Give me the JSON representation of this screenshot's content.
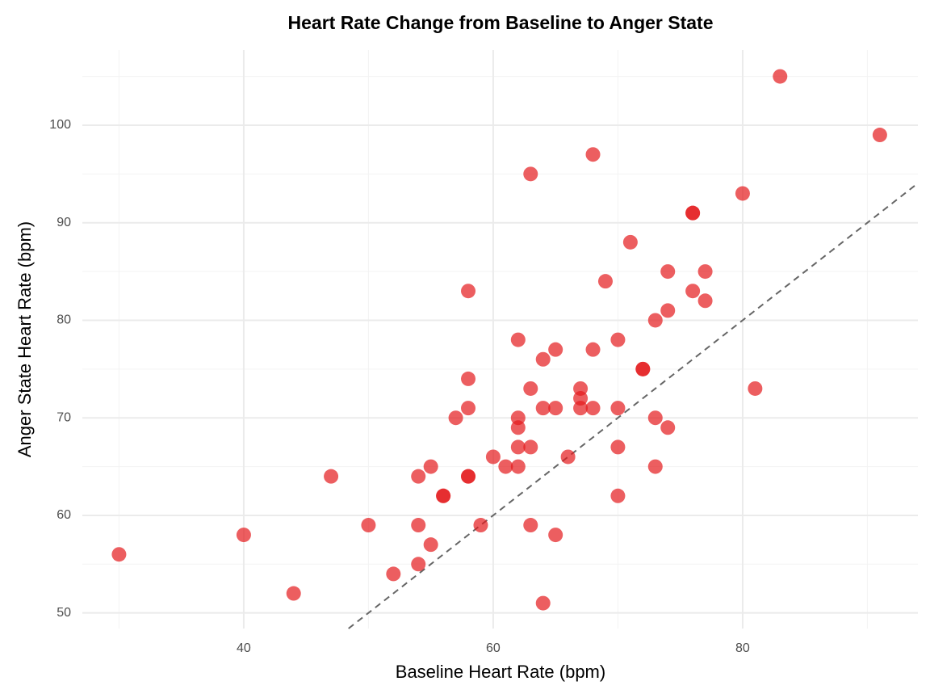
{
  "chart_data": {
    "type": "scatter",
    "title": "Heart Rate Change from Baseline to Anger State",
    "xlabel": "Baseline Heart Rate (bpm)",
    "ylabel": "Anger State Heart Rate (bpm)",
    "x": [
      30,
      40,
      44,
      47,
      50,
      52,
      54,
      54,
      54,
      55,
      55,
      56,
      56,
      57,
      58,
      58,
      58,
      58,
      58,
      59,
      60,
      61,
      62,
      62,
      62,
      62,
      62,
      63,
      63,
      63,
      63,
      64,
      64,
      64,
      65,
      65,
      65,
      66,
      67,
      67,
      67,
      68,
      68,
      68,
      69,
      70,
      70,
      70,
      70,
      71,
      72,
      72,
      73,
      73,
      73,
      74,
      74,
      74,
      76,
      76,
      76,
      77,
      77,
      80,
      81,
      83,
      91
    ],
    "values": [
      56,
      58,
      52,
      64,
      59,
      54,
      64,
      59,
      55,
      65,
      57,
      62,
      62,
      70,
      83,
      74,
      71,
      64,
      64,
      59,
      66,
      65,
      78,
      70,
      69,
      67,
      65,
      95,
      73,
      67,
      59,
      76,
      71,
      51,
      77,
      71,
      58,
      66,
      73,
      72,
      71,
      97,
      77,
      71,
      84,
      78,
      71,
      67,
      62,
      88,
      75,
      75,
      80,
      70,
      65,
      85,
      81,
      69,
      91,
      91,
      83,
      85,
      82,
      93,
      73,
      105,
      99
    ],
    "color": "#e41a1c",
    "opacity": 0.7,
    "xlim": [
      27.06,
      94.05
    ],
    "ylim": [
      48.4,
      107.7
    ],
    "xticks": [
      40,
      60,
      80
    ],
    "yticks": [
      50,
      60,
      70,
      80,
      90,
      100
    ],
    "x_minor_ticks": [
      30,
      50,
      70,
      90
    ],
    "y_minor_ticks": [
      55,
      65,
      75,
      85,
      95,
      105
    ],
    "grid": true,
    "identity_line": true
  }
}
